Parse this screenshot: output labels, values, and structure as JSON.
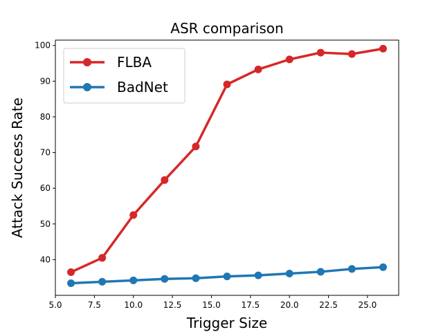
{
  "chart_data": {
    "type": "line",
    "title": "ASR comparison",
    "xlabel": "Trigger Size",
    "ylabel": "Attack Success Rate",
    "xlim": [
      5.0,
      27.0
    ],
    "ylim": [
      30.0,
      101.5
    ],
    "xticks": [
      5.0,
      7.5,
      10.0,
      12.5,
      15.0,
      17.5,
      20.0,
      22.5,
      25.0
    ],
    "xtick_labels": [
      "5.0",
      "7.5",
      "10.0",
      "12.5",
      "15.0",
      "17.5",
      "20.0",
      "22.5",
      "25.0"
    ],
    "yticks": [
      40,
      50,
      60,
      70,
      80,
      90,
      100
    ],
    "ytick_labels": [
      "40",
      "50",
      "60",
      "70",
      "80",
      "90",
      "100"
    ],
    "grid": false,
    "legend_position": "top-left",
    "x": [
      6,
      8,
      10,
      12,
      14,
      16,
      18,
      20,
      22,
      24,
      26
    ],
    "series": [
      {
        "name": "FLBA",
        "color": "#d62728",
        "marker": "circle",
        "values": [
          36.5,
          40.5,
          52.5,
          62.3,
          71.7,
          89.1,
          93.3,
          96.1,
          98.0,
          97.6,
          99.1
        ]
      },
      {
        "name": "BadNet",
        "color": "#1f77b4",
        "marker": "circle",
        "values": [
          33.4,
          33.8,
          34.2,
          34.6,
          34.8,
          35.3,
          35.6,
          36.1,
          36.6,
          37.4,
          37.9
        ]
      }
    ]
  }
}
